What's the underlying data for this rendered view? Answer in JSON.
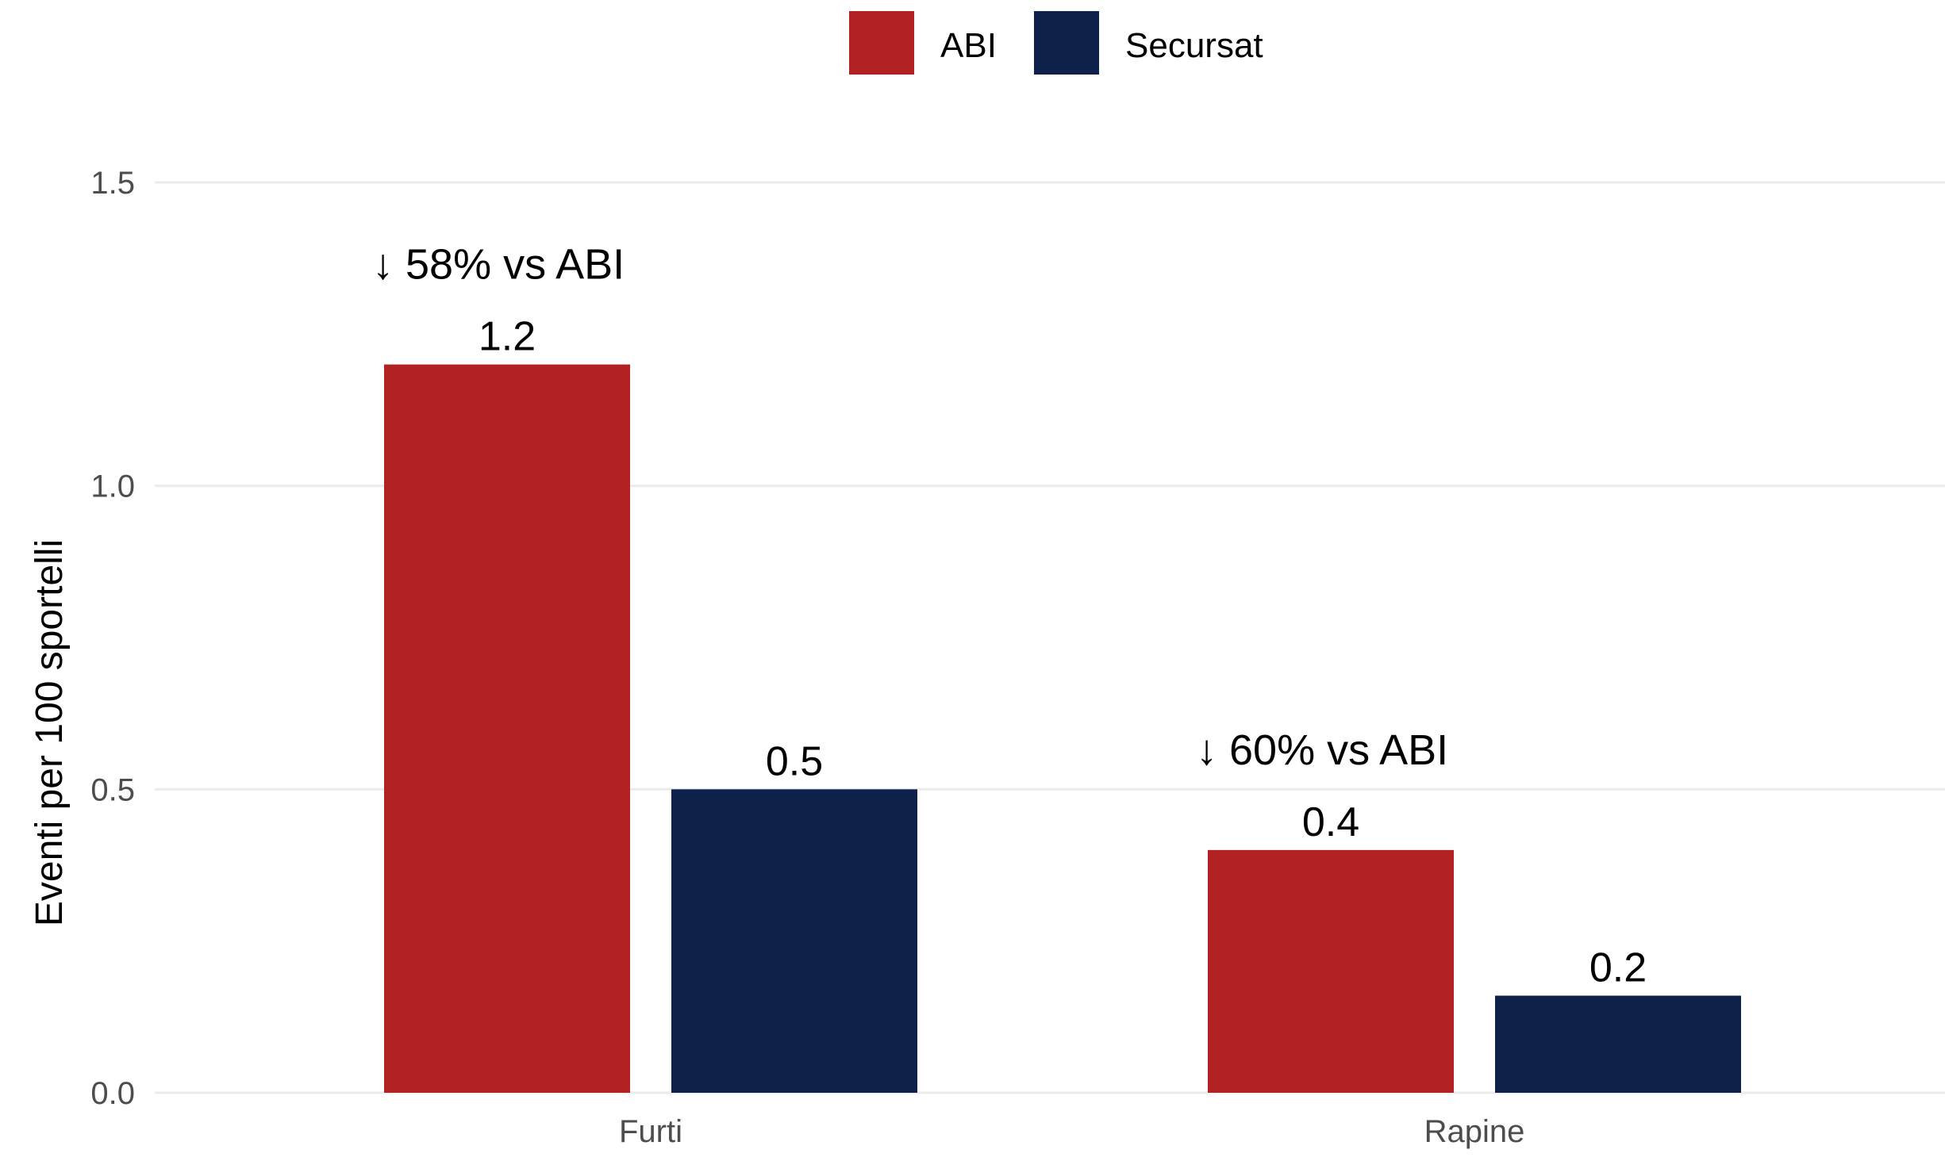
{
  "chart_data": {
    "type": "bar",
    "categories": [
      "Furti",
      "Rapine"
    ],
    "series": [
      {
        "name": "ABI",
        "values": [
          1.2,
          0.4
        ],
        "labels": [
          "1.2",
          "0.4"
        ],
        "color": "#b22222"
      },
      {
        "name": "Secursat",
        "values": [
          0.5,
          0.16
        ],
        "labels": [
          "0.5",
          "0.2"
        ],
        "color": "#0e214a"
      }
    ],
    "annotations": [
      "↓ 58% vs ABI",
      "↓ 60% vs ABI"
    ],
    "ylabel": "Eventi per 100 sportelli",
    "xlabel": "",
    "ylim": [
      0,
      1.5
    ],
    "yticks": [
      "0.0",
      "0.5",
      "1.0",
      "1.5"
    ],
    "grid": true,
    "legend": "top"
  }
}
